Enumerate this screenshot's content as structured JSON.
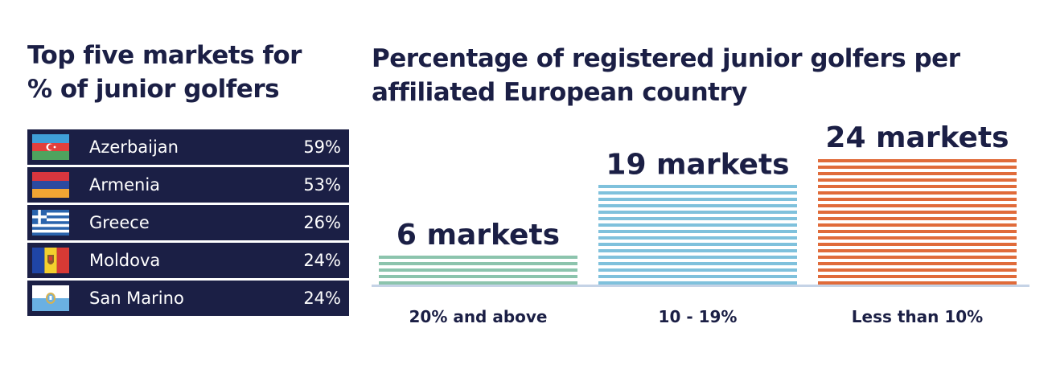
{
  "left_panel": {
    "title_line1": "Top five markets for",
    "title_line2": "% of junior golfers",
    "rows": [
      {
        "country": "Azerbaijan",
        "percent": "59%",
        "flag": "azerbaijan-flag"
      },
      {
        "country": "Armenia",
        "percent": "53%",
        "flag": "armenia-flag"
      },
      {
        "country": "Greece",
        "percent": "26%",
        "flag": "greece-flag"
      },
      {
        "country": "Moldova",
        "percent": "24%",
        "flag": "moldova-flag"
      },
      {
        "country": "San Marino",
        "percent": "24%",
        "flag": "san-marino-flag"
      }
    ]
  },
  "chart_data": {
    "type": "bar",
    "title": "Percentage of registered junior golfers per affiliated European country",
    "title_line1": "Percentage of registered junior golfers per",
    "title_line2": "affiliated European country",
    "categories": [
      "20% and above",
      "10 - 19%",
      "Less than 10%"
    ],
    "values": [
      6,
      19,
      24
    ],
    "value_labels": [
      "6 markets",
      "19 markets",
      "24 markets"
    ],
    "colors": [
      "#8cc4ad",
      "#7fc1dc",
      "#e06b3a"
    ],
    "axis_color": "#c5d3e6",
    "xlabel": "",
    "ylabel": "",
    "ylim": [
      0,
      24
    ],
    "grid": false
  },
  "colors": {
    "navy": "#1b1f45"
  }
}
